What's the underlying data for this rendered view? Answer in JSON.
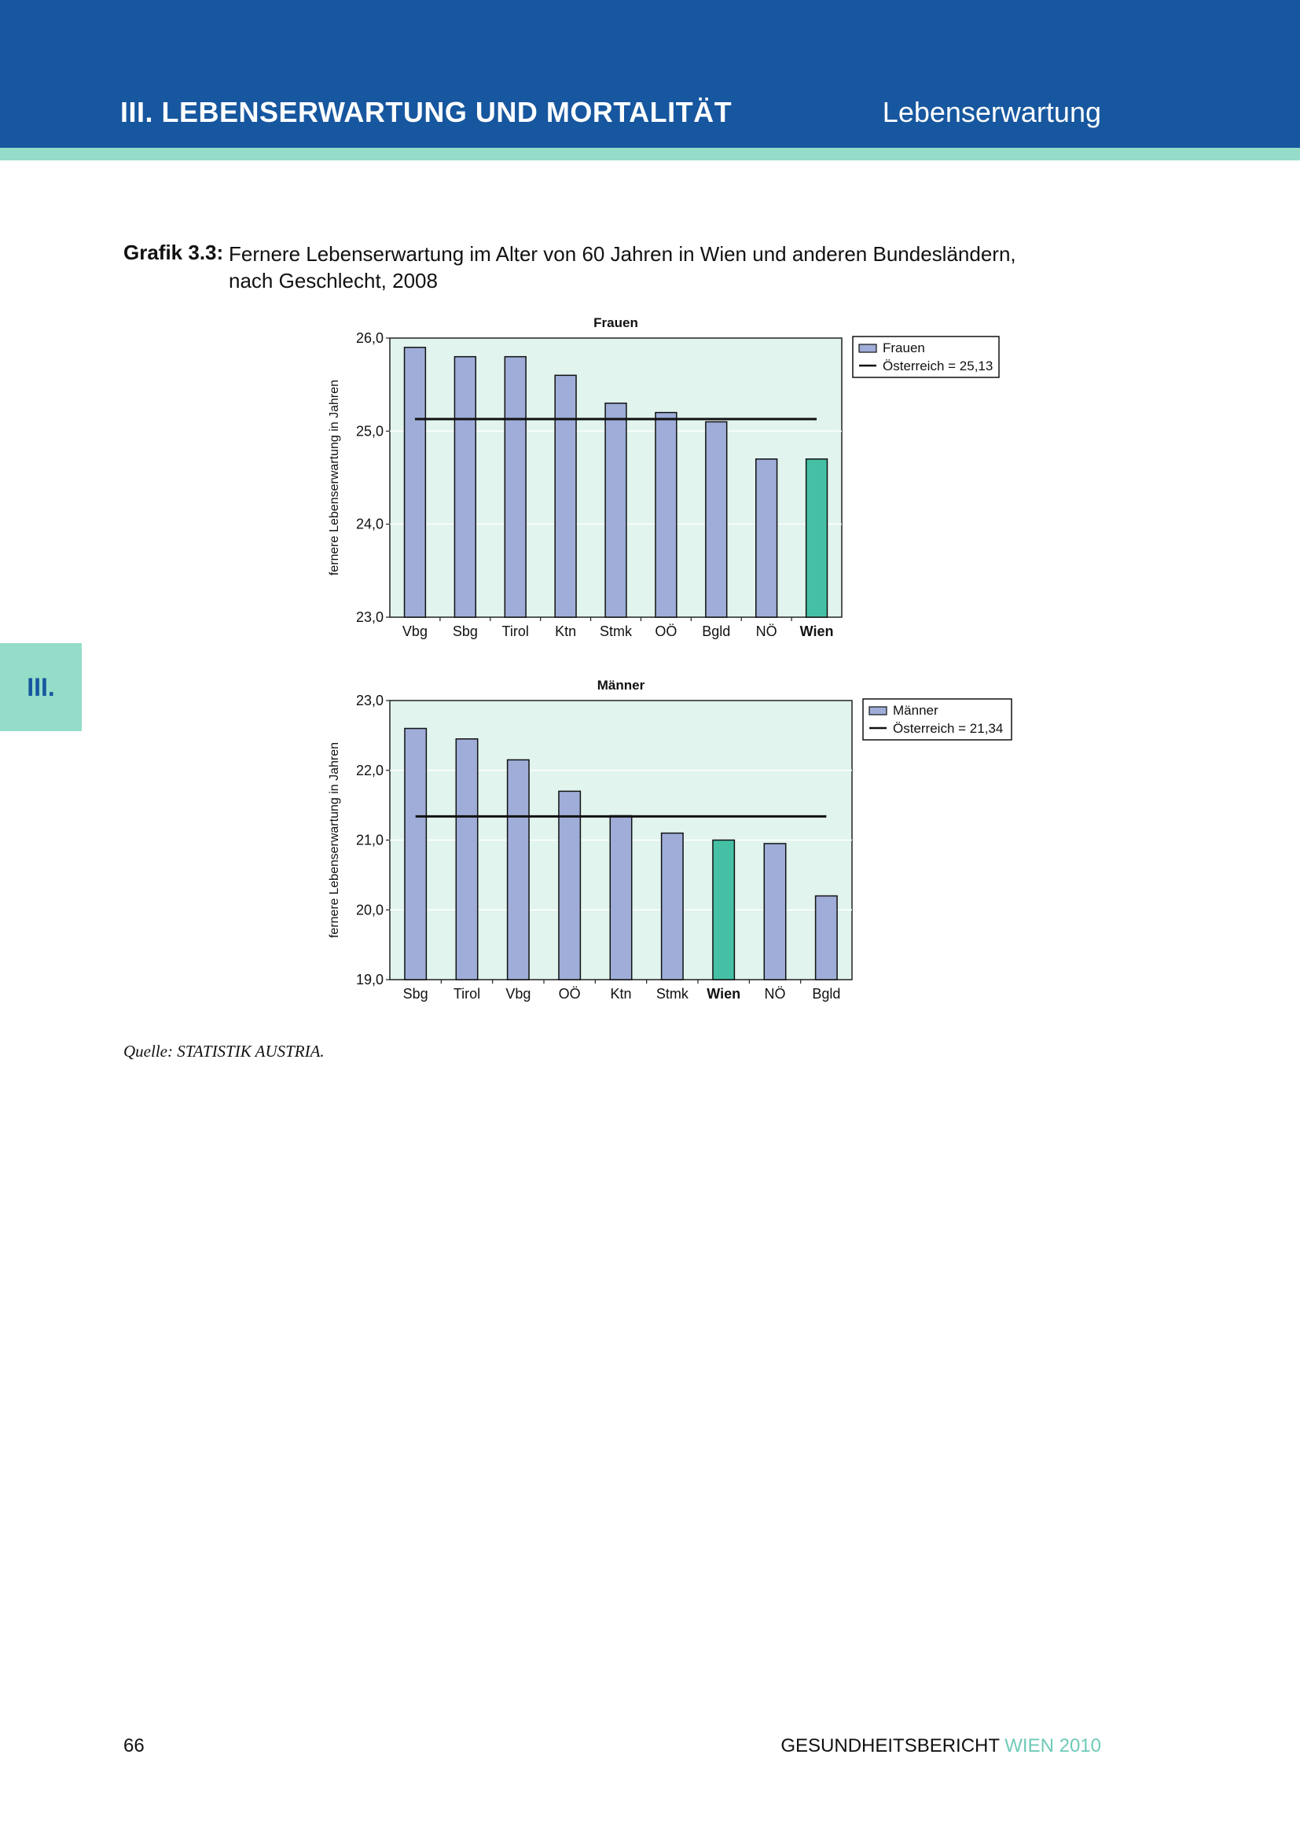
{
  "header": {
    "chapter_title": "III. LEBENSERWARTUNG UND MORTALITÄT",
    "section_title": "Lebenserwartung"
  },
  "side_tab": {
    "label": "III."
  },
  "caption": {
    "label": "Grafik 3.3:",
    "text": "Fernere Lebenserwartung im Alter von 60 Jahren in Wien und anderen Bundesländern, nach Geschlecht, 2008"
  },
  "colors": {
    "header_blue": "#17579f",
    "accent_mint": "#95dcc9",
    "bar_default": "#9fadd8",
    "bar_highlight": "#45c0a5",
    "plot_background": "#e1f4ee"
  },
  "chart_data": [
    {
      "type": "bar",
      "title": "Frauen",
      "ylabel": "fernere Lebenserwartung in Jahren",
      "ylim": [
        23.0,
        26.0
      ],
      "yticks": [
        "23,0",
        "24,0",
        "25,0",
        "26,0"
      ],
      "ytick_values": [
        23.0,
        24.0,
        25.0,
        26.0
      ],
      "categories": [
        "Vbg",
        "Sbg",
        "Tirol",
        "Ktn",
        "Stmk",
        "OÖ",
        "Bgld",
        "NÖ",
        "Wien"
      ],
      "series": [
        {
          "name": "Frauen",
          "values": [
            25.9,
            25.8,
            25.8,
            25.6,
            25.3,
            25.2,
            25.1,
            24.7,
            24.7
          ]
        }
      ],
      "highlight_category": "Wien",
      "reference_line": {
        "label": "Österreich = 25,13",
        "value": 25.13
      },
      "grid": true,
      "legend_position": "right"
    },
    {
      "type": "bar",
      "title": "Männer",
      "ylabel": "fernere Lebenserwartung in Jahren",
      "ylim": [
        19.0,
        23.0
      ],
      "yticks": [
        "19,0",
        "20,0",
        "21,0",
        "22,0",
        "23,0"
      ],
      "ytick_values": [
        19.0,
        20.0,
        21.0,
        22.0,
        23.0
      ],
      "categories": [
        "Sbg",
        "Tirol",
        "Vbg",
        "OÖ",
        "Ktn",
        "Stmk",
        "Wien",
        "NÖ",
        "Bgld"
      ],
      "series": [
        {
          "name": "Männer",
          "values": [
            22.6,
            22.45,
            22.15,
            21.7,
            21.35,
            21.1,
            21.0,
            20.95,
            20.2
          ]
        }
      ],
      "highlight_category": "Wien",
      "reference_line": {
        "label": "Österreich = 21,34",
        "value": 21.34
      },
      "grid": true,
      "legend_position": "right"
    }
  ],
  "source": "Quelle: STATISTIK AUSTRIA.",
  "footer": {
    "page_number": "66",
    "title_main": "GESUNDHEITSBERICHT",
    "title_accent": "WIEN 2010"
  }
}
